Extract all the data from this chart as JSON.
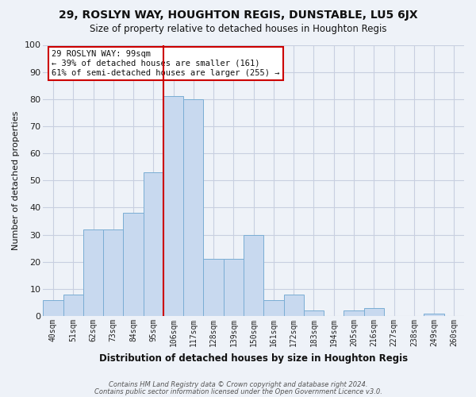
{
  "title": "29, ROSLYN WAY, HOUGHTON REGIS, DUNSTABLE, LU5 6JX",
  "subtitle": "Size of property relative to detached houses in Houghton Regis",
  "xlabel": "Distribution of detached houses by size in Houghton Regis",
  "ylabel": "Number of detached properties",
  "bin_labels": [
    "40sqm",
    "51sqm",
    "62sqm",
    "73sqm",
    "84sqm",
    "95sqm",
    "106sqm",
    "117sqm",
    "128sqm",
    "139sqm",
    "150sqm",
    "161sqm",
    "172sqm",
    "183sqm",
    "194sqm",
    "205sqm",
    "216sqm",
    "227sqm",
    "238sqm",
    "249sqm",
    "260sqm"
  ],
  "bar_values": [
    6,
    8,
    32,
    32,
    38,
    53,
    81,
    80,
    21,
    21,
    30,
    6,
    8,
    2,
    0,
    2,
    3,
    0,
    0,
    1,
    0
  ],
  "bar_color": "#c8d9ef",
  "bar_edge_color": "#7aadd4",
  "grid_color": "#c8cfe0",
  "vline_x": 5.5,
  "vline_color": "#cc0000",
  "annotation_text": "29 ROSLYN WAY: 99sqm\n← 39% of detached houses are smaller (161)\n61% of semi-detached houses are larger (255) →",
  "annotation_box_color": "#ffffff",
  "annotation_box_edge": "#cc0000",
  "ylim": [
    0,
    100
  ],
  "footer1": "Contains HM Land Registry data © Crown copyright and database right 2024.",
  "footer2": "Contains public sector information licensed under the Open Government Licence v3.0.",
  "background_color": "#eef2f8"
}
